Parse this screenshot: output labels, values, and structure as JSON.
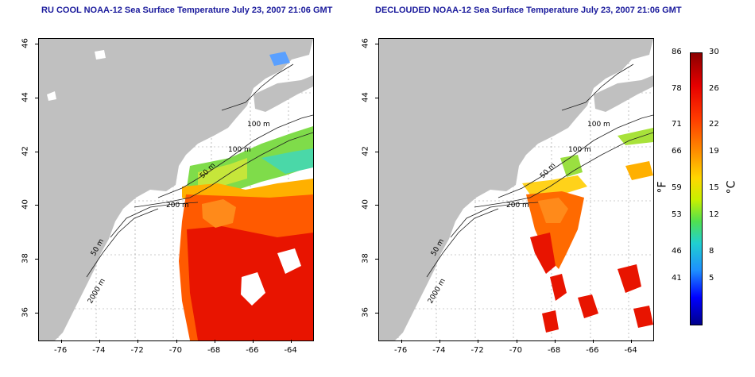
{
  "titles": {
    "left": "RU COOL NOAA-12 Sea Surface Temperature July 23, 2007 21:06 GMT",
    "right": "DECLOUDED NOAA-12 Sea Surface Temperature July 23, 2007 21:06 GMT"
  },
  "axes": {
    "x_ticks": [
      "-76",
      "-74",
      "-72",
      "-70",
      "-68",
      "-66",
      "-64"
    ],
    "y_ticks": [
      "46",
      "44",
      "42",
      "40",
      "38",
      "36"
    ],
    "x_values": [
      -76,
      -74,
      -72,
      -70,
      -68,
      -66,
      -64
    ],
    "y_values": [
      46,
      44,
      42,
      40,
      38,
      36
    ],
    "lon_range": [
      -77.2,
      -62.9
    ],
    "lat_range": [
      35,
      46.2
    ]
  },
  "contour_labels": [
    "100 m",
    "100 m",
    "50 m",
    "200 m",
    "50 m",
    "2000 m"
  ],
  "colorbar": {
    "fahrenheit_ticks": [
      "86",
      "78",
      "71",
      "66",
      "59",
      "53",
      "46",
      "41"
    ],
    "celsius_ticks": [
      "30",
      "26",
      "22",
      "19",
      "15",
      "12",
      "8",
      "5"
    ],
    "unit_f": "°F",
    "unit_c": "°C",
    "range_c": [
      0,
      30
    ]
  },
  "colors": {
    "land": "#c0c0c0",
    "title": "#1a1a9c"
  }
}
